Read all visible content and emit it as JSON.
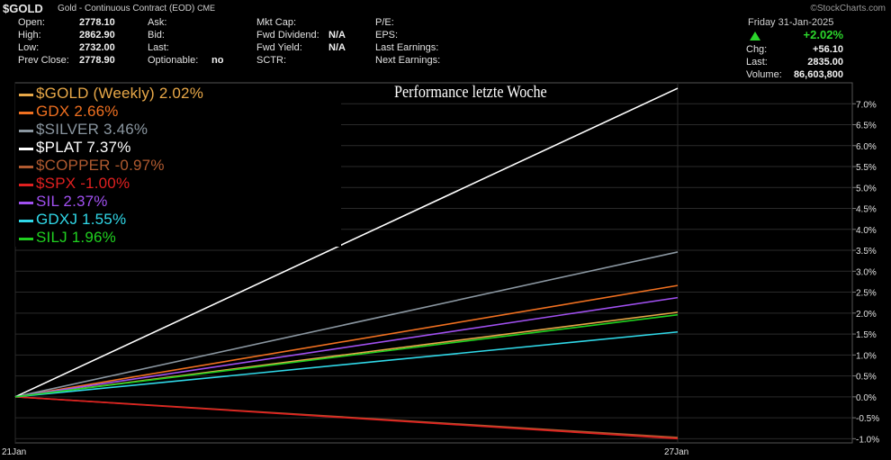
{
  "header": {
    "symbol": "$GOLD",
    "description": "Gold - Continuous Contract (EOD)",
    "exchange": "CME",
    "watermark": "©StockCharts.com"
  },
  "quote": {
    "open_label": "Open:",
    "open": "2778.10",
    "high_label": "High:",
    "high": "2862.90",
    "low_label": "Low:",
    "low": "2732.00",
    "prev_close_label": "Prev Close:",
    "prev_close": "2778.90",
    "ask_label": "Ask:",
    "bid_label": "Bid:",
    "last_label": "Last:",
    "optionable_label": "Optionable:",
    "optionable": "no",
    "mkt_cap_label": "Mkt Cap:",
    "fwd_div_label": "Fwd Dividend:",
    "fwd_div": "N/A",
    "fwd_yield_label": "Fwd Yield:",
    "fwd_yield": "N/A",
    "sctr_label": "SCTR:",
    "pe_label": "P/E:",
    "eps_label": "EPS:",
    "last_earn_label": "Last Earnings:",
    "next_earn_label": "Next Earnings:",
    "date": "Friday  31-Jan-2025",
    "pct_change": "+2.02%",
    "chg_label": "Chg:",
    "chg": "+56.10",
    "last_label2": "Last:",
    "last": "2835.00",
    "volume_label": "Volume:",
    "volume": "86,603,800"
  },
  "colors": {
    "up": "#2bd52b",
    "background": "#000000",
    "grid": "#2a2a2a"
  },
  "chart_data": {
    "type": "line",
    "title": "Performance letzte Woche",
    "x_tick_labels": [
      "21Jan",
      "27Jan"
    ],
    "x": [
      0,
      1
    ],
    "ylim": [
      -1.1,
      7.5
    ],
    "y_ticks": [
      "-1.0%",
      "-0.5%",
      "0.0%",
      "0.5%",
      "1.0%",
      "1.5%",
      "2.0%",
      "2.5%",
      "3.0%",
      "3.5%",
      "4.0%",
      "4.5%",
      "5.0%",
      "5.5%",
      "6.0%",
      "6.5%",
      "7.0%"
    ],
    "y_tick_values": [
      -1.0,
      -0.5,
      0.0,
      0.5,
      1.0,
      1.5,
      2.0,
      2.5,
      3.0,
      3.5,
      4.0,
      4.5,
      5.0,
      5.5,
      6.0,
      6.5,
      7.0
    ],
    "grid": true,
    "legend_position": "top-left",
    "series": [
      {
        "name": "$GOLD (Weekly) 2.02%",
        "values": [
          0,
          2.02
        ],
        "color": "#e8a848"
      },
      {
        "name": "GDX 2.66%",
        "values": [
          0,
          2.66
        ],
        "color": "#f07020"
      },
      {
        "name": "$SILVER 3.46%",
        "values": [
          0,
          3.46
        ],
        "color": "#8a96a0"
      },
      {
        "name": "$PLAT 7.37%",
        "values": [
          0,
          7.37
        ],
        "color": "#ffffff"
      },
      {
        "name": "$COPPER -0.97%",
        "values": [
          0,
          -0.97
        ],
        "color": "#b05a30"
      },
      {
        "name": "$SPX -1.00%",
        "values": [
          0,
          -1.0
        ],
        "color": "#e02020"
      },
      {
        "name": "SIL 2.37%",
        "values": [
          0,
          2.37
        ],
        "color": "#a050f0"
      },
      {
        "name": "GDXJ 1.55%",
        "values": [
          0,
          1.55
        ],
        "color": "#30d8e8"
      },
      {
        "name": "SILJ 1.96%",
        "values": [
          0,
          1.96
        ],
        "color": "#20d020"
      }
    ]
  }
}
